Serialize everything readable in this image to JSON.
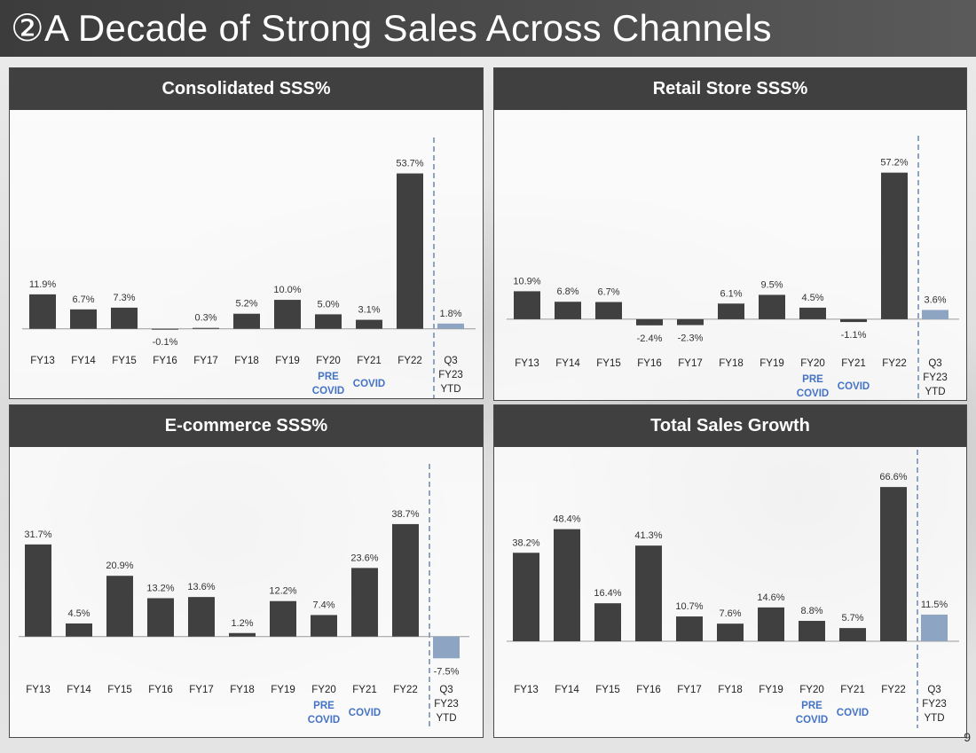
{
  "page": {
    "title": "②A Decade of Strong Sales Across Channels",
    "page_number": "9"
  },
  "colors": {
    "bar": "#404040",
    "ytd_bar": "#8ea4c3",
    "label_accent": "#4472c4",
    "divider": "#8ea4c3"
  },
  "chart_data": [
    {
      "type": "bar",
      "title": "Consolidated SSS%",
      "categories": [
        "FY13",
        "FY14",
        "FY15",
        "FY16",
        "FY17",
        "FY18",
        "FY19",
        "FY20",
        "FY21",
        "FY22",
        "Q3 FY23 YTD"
      ],
      "category_lines": [
        [
          "FY13"
        ],
        [
          "FY14"
        ],
        [
          "FY15"
        ],
        [
          "FY16"
        ],
        [
          "FY17"
        ],
        [
          "FY18"
        ],
        [
          "FY19"
        ],
        [
          "FY20"
        ],
        [
          "FY21"
        ],
        [
          "FY22"
        ],
        [
          "Q3",
          "FY23",
          "YTD"
        ]
      ],
      "values": [
        11.9,
        6.7,
        7.3,
        -0.1,
        0.3,
        5.2,
        10.0,
        5.0,
        3.1,
        53.7,
        1.8
      ],
      "data_labels": [
        "11.9%",
        "6.7%",
        "7.3%",
        "-0.1%",
        "0.3%",
        "5.2%",
        "10.0%",
        "5.0%",
        "3.1%",
        "53.7%",
        "1.8%"
      ],
      "highlight_index": 10,
      "annotations": [
        {
          "index": 7,
          "lines": [
            "PRE",
            "COVID"
          ]
        },
        {
          "index": 8,
          "lines": [
            "COVID"
          ]
        }
      ],
      "xlabel": "",
      "ylabel": "",
      "ylim": [
        -5,
        60
      ]
    },
    {
      "type": "bar",
      "title": "Retail Store SSS%",
      "categories": [
        "FY13",
        "FY14",
        "FY15",
        "FY16",
        "FY17",
        "FY18",
        "FY19",
        "FY20",
        "FY21",
        "FY22",
        "Q3 FY23 YTD"
      ],
      "category_lines": [
        [
          "FY13"
        ],
        [
          "FY14"
        ],
        [
          "FY15"
        ],
        [
          "FY16"
        ],
        [
          "FY17"
        ],
        [
          "FY18"
        ],
        [
          "FY19"
        ],
        [
          "FY20"
        ],
        [
          "FY21"
        ],
        [
          "FY22"
        ],
        [
          "Q3",
          "FY23",
          "YTD"
        ]
      ],
      "values": [
        10.9,
        6.8,
        6.7,
        -2.4,
        -2.3,
        6.1,
        9.5,
        4.5,
        -1.1,
        57.2,
        3.6
      ],
      "data_labels": [
        "10.9%",
        "6.8%",
        "6.7%",
        "-2.4%",
        "-2.3%",
        "6.1%",
        "9.5%",
        "4.5%",
        "-1.1%",
        "57.2%",
        "3.6%"
      ],
      "highlight_index": 10,
      "annotations": [
        {
          "index": 7,
          "lines": [
            "PRE",
            "COVID"
          ]
        },
        {
          "index": 8,
          "lines": [
            "COVID"
          ]
        }
      ],
      "xlabel": "",
      "ylabel": "",
      "ylim": [
        -8,
        64
      ]
    },
    {
      "type": "bar",
      "title": "E-commerce SSS%",
      "categories": [
        "FY13",
        "FY14",
        "FY15",
        "FY16",
        "FY17",
        "FY18",
        "FY19",
        "FY20",
        "FY21",
        "FY22",
        "Q3 FY23 YTD"
      ],
      "category_lines": [
        [
          "FY13"
        ],
        [
          "FY14"
        ],
        [
          "FY15"
        ],
        [
          "FY16"
        ],
        [
          "FY17"
        ],
        [
          "FY18"
        ],
        [
          "FY19"
        ],
        [
          "FY20"
        ],
        [
          "FY21"
        ],
        [
          "FY22"
        ],
        [
          "Q3",
          "FY23",
          "YTD"
        ]
      ],
      "values": [
        31.7,
        4.5,
        20.9,
        13.2,
        13.6,
        1.2,
        12.2,
        7.4,
        23.6,
        38.7,
        -7.5
      ],
      "data_labels": [
        "31.7%",
        "4.5%",
        "20.9%",
        "13.2%",
        "13.6%",
        "1.2%",
        "12.2%",
        "7.4%",
        "23.6%",
        "38.7%",
        "-7.5%"
      ],
      "highlight_index": 10,
      "annotations": [
        {
          "index": 7,
          "lines": [
            "PRE",
            "COVID"
          ]
        },
        {
          "index": 8,
          "lines": [
            "COVID"
          ]
        }
      ],
      "xlabel": "",
      "ylabel": "",
      "ylim": [
        -12,
        46
      ]
    },
    {
      "type": "bar",
      "title": "Total Sales Growth",
      "categories": [
        "FY13",
        "FY14",
        "FY15",
        "FY16",
        "FY17",
        "FY18",
        "FY19",
        "FY20",
        "FY21",
        "FY22",
        "Q3 FY23 YTD"
      ],
      "category_lines": [
        [
          "FY13"
        ],
        [
          "FY14"
        ],
        [
          "FY15"
        ],
        [
          "FY16"
        ],
        [
          "FY17"
        ],
        [
          "FY18"
        ],
        [
          "FY19"
        ],
        [
          "FY20"
        ],
        [
          "FY21"
        ],
        [
          "FY22"
        ],
        [
          "Q3",
          "FY23",
          "YTD"
        ]
      ],
      "values": [
        38.2,
        48.4,
        16.4,
        41.3,
        10.7,
        7.6,
        14.6,
        8.8,
        5.7,
        66.6,
        11.5
      ],
      "data_labels": [
        "38.2%",
        "48.4%",
        "16.4%",
        "41.3%",
        "10.7%",
        "7.6%",
        "14.6%",
        "8.8%",
        "5.7%",
        "66.6%",
        "11.5%"
      ],
      "highlight_index": 10,
      "annotations": [
        {
          "index": 7,
          "lines": [
            "PRE",
            "COVID"
          ]
        },
        {
          "index": 8,
          "lines": [
            "COVID"
          ]
        }
      ],
      "xlabel": "",
      "ylabel": "",
      "ylim": [
        0,
        72
      ]
    }
  ]
}
